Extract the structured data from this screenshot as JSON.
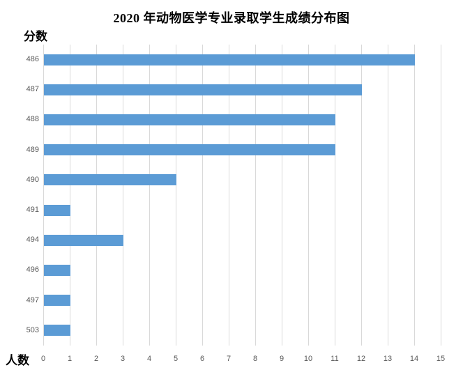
{
  "chart_data": {
    "type": "bar",
    "orientation": "horizontal",
    "title": "2020 年动物医学专业录取学生成绩分布图",
    "ylabel": "分数",
    "xlabel": "人数",
    "categories": [
      "486",
      "487",
      "488",
      "489",
      "490",
      "491",
      "494",
      "496",
      "497",
      "503"
    ],
    "values": [
      14,
      12,
      11,
      11,
      5,
      1,
      3,
      1,
      1,
      1
    ],
    "xlim": [
      0,
      15
    ],
    "xticks": [
      0,
      1,
      2,
      3,
      4,
      5,
      6,
      7,
      8,
      9,
      10,
      11,
      12,
      13,
      14,
      15
    ],
    "grid": "vertical",
    "legend": "none",
    "colors": {
      "bar": "#5B9BD5",
      "gridline": "#D9D9D9",
      "tick_text": "#595959",
      "title_text": "#000000",
      "background": "#FFFFFF"
    }
  }
}
